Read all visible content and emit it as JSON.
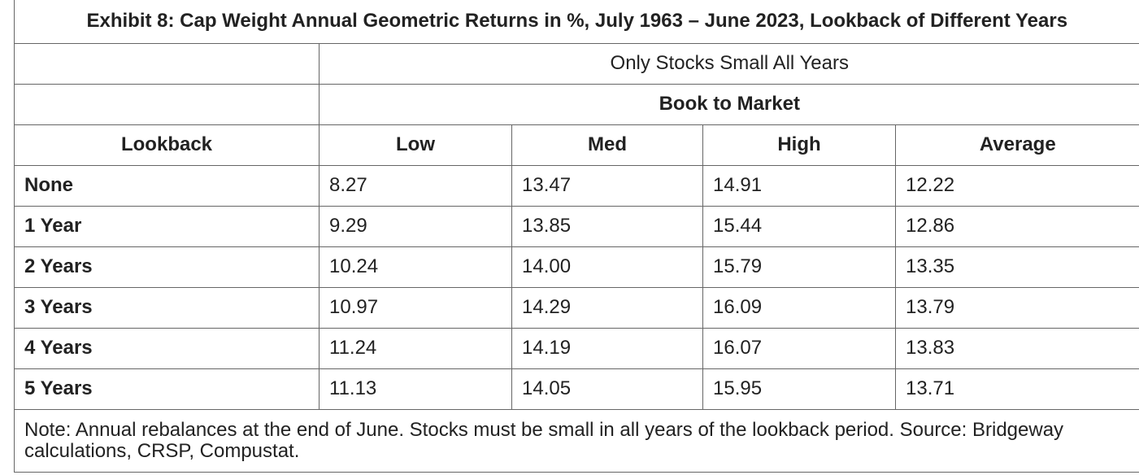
{
  "title": "Exhibit 8: Cap Weight Annual Geometric Returns in %, July 1963 – June 2023, Lookback of Different Years",
  "table": {
    "group_label": "Only Stocks Small All Years",
    "subgroup_label": "Book to Market",
    "columns": [
      "Lookback",
      "Low",
      "Med",
      "High",
      "Average"
    ],
    "rows": [
      [
        "None",
        "8.27",
        "13.47",
        "14.91",
        "12.22"
      ],
      [
        "1 Year",
        "9.29",
        "13.85",
        "15.44",
        "12.86"
      ],
      [
        "2 Years",
        "10.24",
        "14.00",
        "15.79",
        "13.35"
      ],
      [
        "3 Years",
        "10.97",
        "14.29",
        "16.09",
        "13.79"
      ],
      [
        "4 Years",
        "11.24",
        "14.19",
        "16.07",
        "13.83"
      ],
      [
        "5 Years",
        "11.13",
        "14.05",
        "15.95",
        "13.71"
      ]
    ]
  },
  "note": "Note: Annual rebalances at the end of June. Stocks must be small in all years of the lookback period. Source: Bridgeway calculations, CRSP, Compustat."
}
